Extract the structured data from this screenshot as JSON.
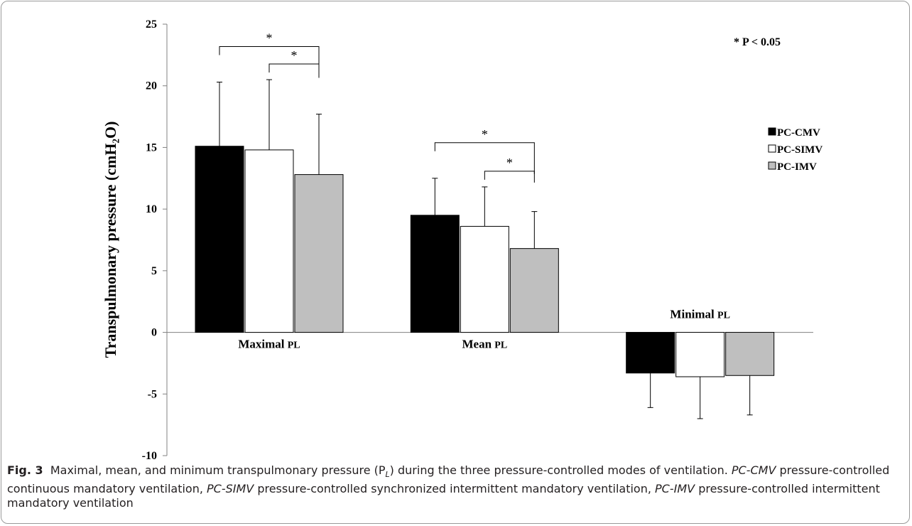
{
  "chart_data": {
    "type": "bar",
    "ylabel": "Transpulmonary pressure (cmH₂O)",
    "ylim": [
      -10,
      25
    ],
    "yticks": [
      -10,
      -5,
      0,
      5,
      10,
      15,
      20,
      25
    ],
    "grid": false,
    "legend_position": "right",
    "categories": [
      "Maximal PL",
      "Mean PL",
      "Minimal PL"
    ],
    "category_label_parts": [
      {
        "main": "Maximal",
        "sub": "PL"
      },
      {
        "main": "Mean",
        "sub": "PL"
      },
      {
        "main": "Minimal",
        "sub": "PL"
      }
    ],
    "series": [
      {
        "name": "PC-CMV",
        "color": "#000000",
        "values": [
          15.1,
          9.5,
          -3.3
        ],
        "errors": [
          5.2,
          3.0,
          2.8
        ]
      },
      {
        "name": "PC-SIMV",
        "color": "#ffffff",
        "values": [
          14.8,
          8.6,
          -3.6
        ],
        "errors": [
          5.7,
          3.2,
          3.4
        ]
      },
      {
        "name": "PC-IMV",
        "color": "#bfbfbf",
        "values": [
          12.8,
          6.8,
          -3.5
        ],
        "errors": [
          4.9,
          3.0,
          3.2
        ]
      }
    ],
    "significance_brackets": [
      {
        "category": 0,
        "from": 0,
        "to": 2,
        "label": "*"
      },
      {
        "category": 0,
        "from": 1,
        "to": 2,
        "label": "*"
      },
      {
        "category": 1,
        "from": 0,
        "to": 2,
        "label": "*"
      },
      {
        "category": 1,
        "from": 1,
        "to": 2,
        "label": "*"
      }
    ],
    "annotation": "* P < 0.05"
  },
  "caption": {
    "fig_label": "Fig. 3",
    "text": "Maximal, mean, and minimum transpulmonary pressure (P",
    "sub": "L",
    "text2": ") during the three pressure-controlled modes of ventilation.",
    "abbr1": "PC-CMV",
    "def1": "pressure-controlled continuous mandatory ventilation,",
    "abbr2": "PC-SIMV",
    "def2": "pressure-controlled synchronized intermittent mandatory ventilation,",
    "abbr3": "PC-IMV",
    "def3": "pressure-controlled intermittent mandatory ventilation"
  }
}
